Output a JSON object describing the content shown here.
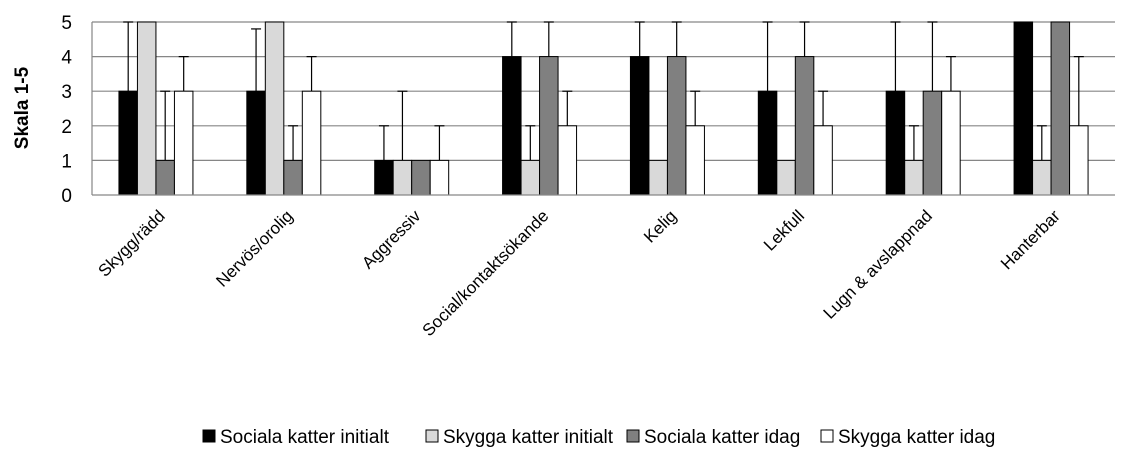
{
  "chart_data": {
    "type": "bar",
    "title": "",
    "xlabel": "",
    "ylabel": "Skala 1-5",
    "ylim": [
      0,
      5
    ],
    "yticks": [
      "0",
      "1",
      "2",
      "3",
      "4",
      "5"
    ],
    "grid": true,
    "legend_position": "bottom",
    "categories": [
      "Skygg/rädd",
      "Nervös/orolig",
      "Aggressiv",
      "Social/kontaktsökande",
      "Kelig",
      "Lekfull",
      "Lugn & avslappnad",
      "Hanterbar"
    ],
    "series": [
      {
        "name": "Sociala katter initialt",
        "color": "#000000",
        "values": [
          3,
          3,
          1,
          4,
          4,
          3,
          3,
          5
        ],
        "error_upper": [
          5,
          4.8,
          2,
          5,
          5,
          5,
          5,
          5
        ]
      },
      {
        "name": "Skygga katter initialt",
        "color": "#d9d9d9",
        "values": [
          5,
          5,
          1,
          1,
          1,
          1,
          1,
          1
        ],
        "error_upper": [
          5,
          5,
          3,
          2,
          1,
          1,
          2,
          2
        ]
      },
      {
        "name": "Sociala katter idag",
        "color": "#808080",
        "values": [
          1,
          1,
          1,
          4,
          4,
          4,
          3,
          5
        ],
        "error_upper": [
          3,
          2,
          1,
          5,
          5,
          5,
          5,
          5
        ]
      },
      {
        "name": "Skygga katter idag",
        "color": "#ffffff",
        "values": [
          3,
          3,
          1,
          2,
          2,
          2,
          3,
          2
        ],
        "error_upper": [
          4,
          4,
          2,
          3,
          3,
          3,
          4,
          4
        ]
      }
    ]
  }
}
